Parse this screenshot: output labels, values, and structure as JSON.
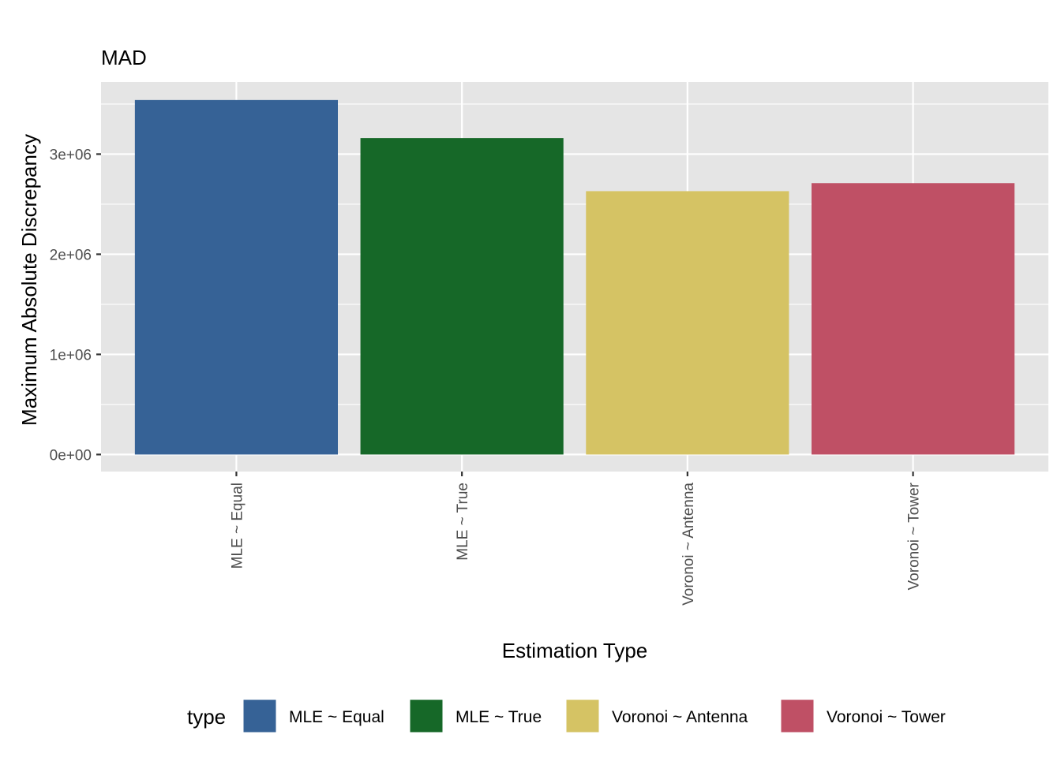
{
  "chart_data": {
    "type": "bar",
    "title": "MAD",
    "xlabel": "Estimation Type",
    "ylabel": "Maximum Absolute Discrepancy",
    "categories": [
      "MLE ~ Equal",
      "MLE ~ True",
      "Voronoi ~ Antenna",
      "Voronoi ~ Tower"
    ],
    "values": [
      3540000,
      3160000,
      2630000,
      2710000
    ],
    "colors": [
      "#366296",
      "#166828",
      "#d5c364",
      "#bf5065"
    ],
    "ylim": [
      -170000,
      3720000
    ],
    "yticks": [
      0,
      1000000,
      2000000,
      3000000
    ],
    "ytick_labels": [
      "0e+00",
      "1e+06",
      "2e+06",
      "3e+06"
    ],
    "grid": true,
    "panel_background": "#e5e5e5",
    "legend": {
      "title": "type",
      "position": "bottom",
      "entries": [
        "MLE ~ Equal",
        "MLE ~ True",
        "Voronoi ~ Antenna",
        "Voronoi ~ Tower"
      ]
    }
  }
}
